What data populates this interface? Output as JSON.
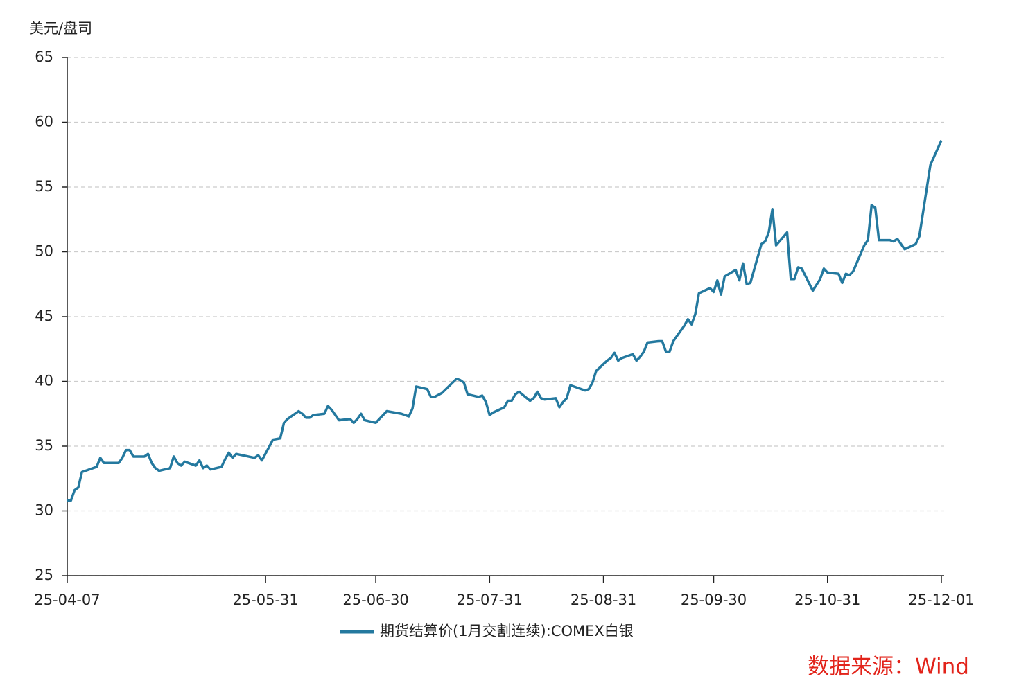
{
  "chart_data": {
    "type": "line",
    "y_label": "美元/盘司",
    "source": "数据来源：Wind",
    "grid": true,
    "ylim": [
      25,
      65
    ],
    "yticks": [
      25,
      30,
      35,
      40,
      45,
      50,
      55,
      60,
      65
    ],
    "xlim": [
      "25-04-07",
      "25-12-01"
    ],
    "xticks": [
      "25-04-07",
      "25-05-31",
      "25-06-30",
      "25-07-31",
      "25-08-31",
      "25-09-30",
      "25-10-31",
      "25-12-01"
    ],
    "legend": "bottom",
    "x": [
      "25-04-07",
      "25-04-08",
      "25-04-09",
      "25-04-10",
      "25-04-11",
      "25-04-15",
      "25-04-16",
      "25-04-17",
      "25-04-21",
      "25-04-22",
      "25-04-23",
      "25-04-24",
      "25-04-25",
      "25-04-28",
      "25-04-29",
      "25-04-30",
      "25-05-01",
      "25-05-02",
      "25-05-05",
      "25-05-06",
      "25-05-07",
      "25-05-08",
      "25-05-09",
      "25-05-12",
      "25-05-13",
      "25-05-14",
      "25-05-15",
      "25-05-16",
      "25-05-19",
      "25-05-20",
      "25-05-21",
      "25-05-22",
      "25-05-23",
      "25-05-28",
      "25-05-29",
      "25-05-30",
      "25-06-02",
      "25-06-04",
      "25-06-05",
      "25-06-06",
      "25-06-09",
      "25-06-10",
      "25-06-11",
      "25-06-12",
      "25-06-13",
      "25-06-16",
      "25-06-17",
      "25-06-18",
      "25-06-20",
      "25-06-23",
      "25-06-24",
      "25-06-25",
      "25-06-26",
      "25-06-27",
      "25-06-30",
      "25-07-01",
      "25-07-03",
      "25-07-07",
      "25-07-08",
      "25-07-09",
      "25-07-10",
      "25-07-11",
      "25-07-14",
      "25-07-15",
      "25-07-16",
      "25-07-18",
      "25-07-22",
      "25-07-23",
      "25-07-24",
      "25-07-25",
      "25-07-28",
      "25-07-29",
      "25-07-30",
      "25-07-31",
      "25-08-01",
      "25-08-04",
      "25-08-05",
      "25-08-06",
      "25-08-07",
      "25-08-08",
      "25-08-11",
      "25-08-12",
      "25-08-13",
      "25-08-14",
      "25-08-15",
      "25-08-18",
      "25-08-19",
      "25-08-20",
      "25-08-21",
      "25-08-22",
      "25-08-25",
      "25-08-26",
      "25-08-27",
      "25-08-28",
      "25-08-29",
      "25-09-01",
      "25-09-02",
      "25-09-03",
      "25-09-04",
      "25-09-05",
      "25-09-08",
      "25-09-09",
      "25-09-10",
      "25-09-11",
      "25-09-12",
      "25-09-15",
      "25-09-16",
      "25-09-17",
      "25-09-18",
      "25-09-19",
      "25-09-22",
      "25-09-23",
      "25-09-24",
      "25-09-25",
      "25-09-26",
      "25-09-29",
      "25-09-30",
      "25-10-01",
      "25-10-02",
      "25-10-03",
      "25-10-06",
      "25-10-07",
      "25-10-08",
      "25-10-09",
      "25-10-10",
      "25-10-13",
      "25-10-14",
      "25-10-15",
      "25-10-16",
      "25-10-17",
      "25-10-20",
      "25-10-21",
      "25-10-22",
      "25-10-23",
      "25-10-24",
      "25-10-27",
      "25-10-29",
      "25-10-30",
      "25-10-31",
      "25-11-03",
      "25-11-04",
      "25-11-05",
      "25-11-06",
      "25-11-07",
      "25-11-10",
      "25-11-11",
      "25-11-12",
      "25-11-13",
      "25-11-14",
      "25-11-17",
      "25-11-18",
      "25-11-19",
      "25-11-20",
      "25-11-21",
      "25-11-24",
      "25-11-25",
      "25-11-28",
      "25-12-01"
    ],
    "series": [
      {
        "name": "期货结算价(1月交割连续):COMEX白银",
        "color": "#24799f",
        "values": [
          30.8,
          30.8,
          31.6,
          31.8,
          33.0,
          33.4,
          34.1,
          33.7,
          33.7,
          34.1,
          34.7,
          34.7,
          34.2,
          34.2,
          34.4,
          33.7,
          33.3,
          33.1,
          33.3,
          34.2,
          33.7,
          33.5,
          33.8,
          33.5,
          33.9,
          33.3,
          33.5,
          33.2,
          33.4,
          34.0,
          34.5,
          34.1,
          34.4,
          34.1,
          34.3,
          33.9,
          35.5,
          35.6,
          36.8,
          37.1,
          37.7,
          37.5,
          37.2,
          37.2,
          37.4,
          37.5,
          38.1,
          37.8,
          37.0,
          37.1,
          36.8,
          37.1,
          37.5,
          37.0,
          36.8,
          37.1,
          37.7,
          37.5,
          37.4,
          37.3,
          37.9,
          39.6,
          39.4,
          38.8,
          38.8,
          39.1,
          40.2,
          40.1,
          39.9,
          39.0,
          38.8,
          38.9,
          38.4,
          37.4,
          37.6,
          38.0,
          38.5,
          38.5,
          39.0,
          39.2,
          38.5,
          38.7,
          39.2,
          38.7,
          38.6,
          38.7,
          38.0,
          38.4,
          38.7,
          39.7,
          39.4,
          39.3,
          39.4,
          39.9,
          40.8,
          41.6,
          41.8,
          42.2,
          41.6,
          41.8,
          42.1,
          41.6,
          41.9,
          42.3,
          43.0,
          43.1,
          43.1,
          42.3,
          42.3,
          43.1,
          44.3,
          44.8,
          44.4,
          45.2,
          46.8,
          47.2,
          46.9,
          47.8,
          46.7,
          48.1,
          48.6,
          47.8,
          49.1,
          47.5,
          47.6,
          50.6,
          50.8,
          51.5,
          53.3,
          50.5,
          51.5,
          47.9,
          47.9,
          48.8,
          48.7,
          47.0,
          47.9,
          48.7,
          48.4,
          48.3,
          47.6,
          48.3,
          48.2,
          48.5,
          50.5,
          50.9,
          53.6,
          53.4,
          50.9,
          50.9,
          50.8,
          51.0,
          50.6,
          50.2,
          50.6,
          51.2,
          56.7,
          58.6
        ]
      }
    ]
  }
}
